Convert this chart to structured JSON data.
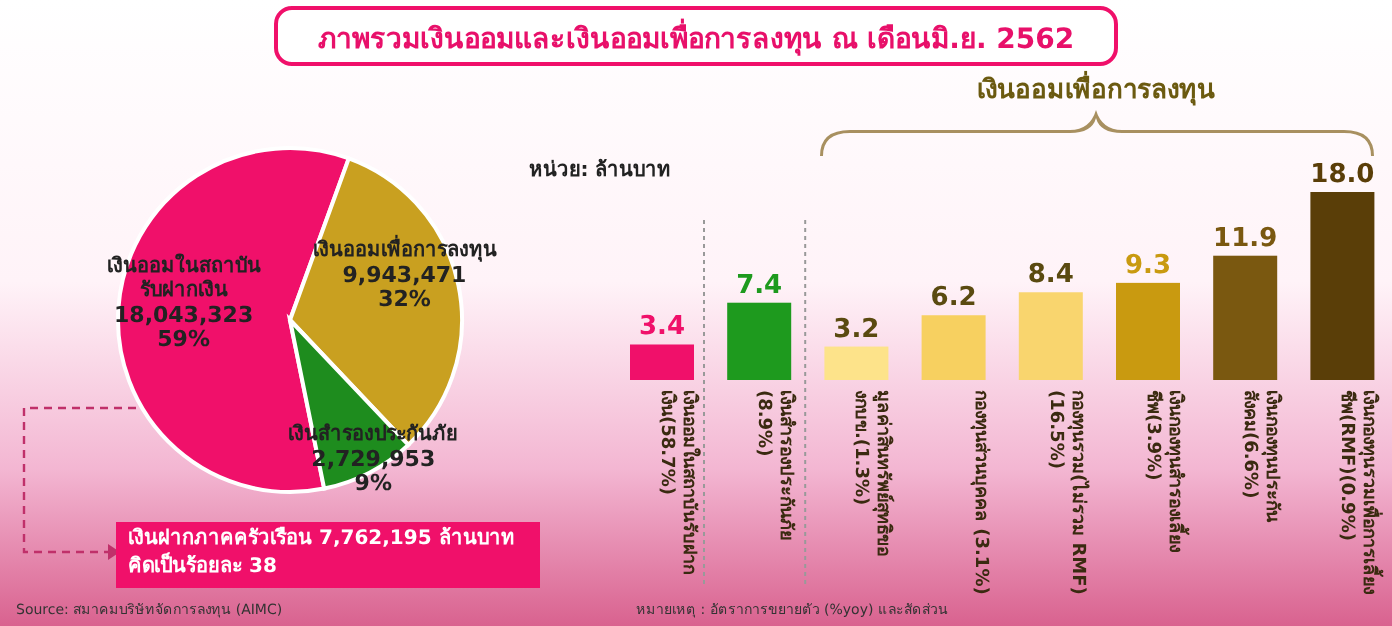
{
  "chart_data": [
    {
      "type": "pie",
      "title": "ภาพรวมเงินออมและเงินออมเพื่อการลงทุน ณ เดือนมิ.ย. 2562",
      "subtitle": "หน่วย: ล้านบาท",
      "categories": [
        "เงินออมในสถาบันรับฝากเงิน",
        "เงินออมเพื่อการลงทุน",
        "เงินสำรองประกันภัย"
      ],
      "values": [
        18043323,
        9943471,
        2729953
      ],
      "value_labels": [
        "18,043,323 59%",
        "9,943,471 32%",
        "2,729,953 9%"
      ],
      "colors": [
        "#f0106a",
        "#c9a020",
        "#1e8c1e"
      ],
      "annotations": [
        "เงินฝากภาคครัวเรือน 7,762,195 ล้านบาท คิดเป็นร้อยละ 38",
        "Source: สมาคมบริษัทจัดการลงทุน (AIMC)"
      ]
    },
    {
      "type": "bar",
      "categories": [
        "เงินออมในสถาบันรับฝากเงิน(58.7%)",
        "เงินสำรองประกันภัย (8.9%)",
        "มูลค่าสินทรัพย์สุทธิของกบข.(1.3%)",
        "กองทุนส่วนบุคคล (3.1%)",
        "กองทุนรวม(ไม่รวม RMF)(16.5%)",
        "เงินกองทุนสำรองเลี้ยงชีพ(3.9%)",
        "เงินกองทุนประกันสังคม(6.6%)",
        "เงินกองทุนรวมเพื่อการเลี้ยงชีพ(RMF)(0.9%)"
      ],
      "values": [
        3.4,
        7.4,
        3.2,
        6.2,
        8.4,
        9.3,
        11.9,
        18.0
      ],
      "colors": [
        "#f0106a",
        "#1e9a1e",
        "#fde38a",
        "#f7d060",
        "#f9d56e",
        "#c99a10",
        "#7a5810",
        "#5a3e08"
      ],
      "value_labels": [
        "3.4",
        "7.4",
        "3.2",
        "6.2",
        "8.4",
        "9.3",
        "11.9",
        "18.0"
      ],
      "annotations": [
        "เงินออมเพื่อการลงทุน",
        "หมายเหตุ : อัตราการขยายตัว (%yoy) และสัดส่วน"
      ]
    }
  ]
}
